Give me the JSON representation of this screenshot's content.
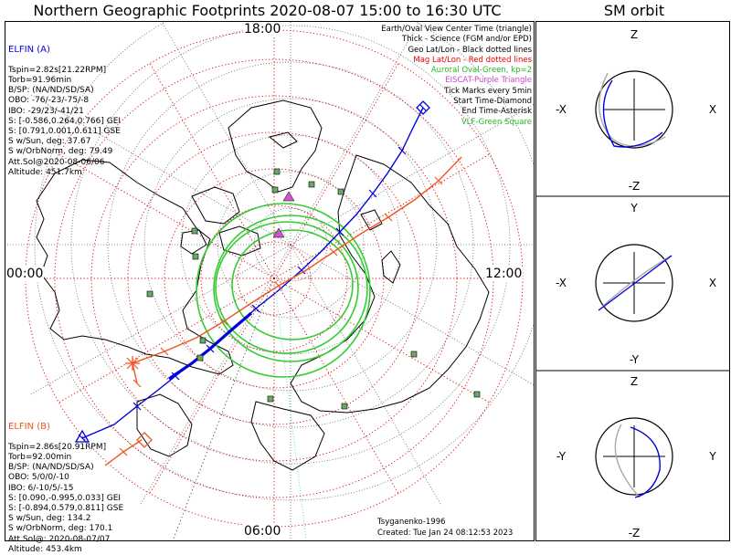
{
  "title": "Northern Geographic Footprints 2020-08-07 15:00 to 16:30 UTC",
  "sm_title": "SM orbit",
  "hour_labels": {
    "top": "18:00",
    "right": "12:00",
    "bottom": "06:00",
    "left": "00:00"
  },
  "elfin_a": {
    "name": "ELFIN (A)",
    "color": "#0000dd",
    "lines": [
      "Tspin=2.82s[21.22RPM]",
      "Torb=91.96min",
      "B/SP: (NA/ND/SD/SA)",
      "OBO: -76/-23/-75/-8",
      "IBO: -29/23/-41/21",
      "S: [-0.586,0.264,0.766] GEI",
      "S: [0.791,0.001,0.611] GSE",
      "S w/Sun, deg: 37.67",
      "S w/OrbNorm, deg: 79.49",
      "Att.Sol@2020-08-06/06",
      "Altitude: 451.7km"
    ]
  },
  "elfin_b": {
    "name": "ELFIN (B)",
    "color": "#ee5522",
    "lines": [
      "Tspin=2.86s[20.91RPM]",
      "Torb=92.00min",
      "B/SP: (NA/ND/SD/SA)",
      "OBO: 5/0/0/-10",
      "IBO: 6/-10/5/-15",
      "S: [0.090,-0.995,0.033] GEI",
      "S: [-0.894,0.579,0.811] GSE",
      "S w/Sun, deg: 134.2",
      "S w/OrbNorm, deg: 170.1",
      "Att.Sol@: 2020-08-07/07",
      "Altitude: 453.4km"
    ]
  },
  "legend": [
    {
      "text": "Earth/Oval View Center Time (triangle)",
      "color": "#000000"
    },
    {
      "text": "Thick - Science (FGM and/or EPD)",
      "color": "#000000"
    },
    {
      "text": "Geo Lat/Lon - Black dotted lines",
      "color": "#000000"
    },
    {
      "text": "Mag Lat/Lon - Red dotted lines",
      "color": "#ee0000"
    },
    {
      "text": "Auroral Oval-Green, kp=2",
      "color": "#22bb22"
    },
    {
      "text": "EISCAT-Purple Triangle",
      "color": "#cc44cc"
    },
    {
      "text": "Tick Marks every 5min",
      "color": "#000000"
    },
    {
      "text": "Start Time-Diamond",
      "color": "#000000"
    },
    {
      "text": "End Time-Asterisk",
      "color": "#000000"
    },
    {
      "text": "VLF-Green Square",
      "color": "#22bb22"
    }
  ],
  "credits": [
    "Tsyganenko-1996",
    "Created: Tue Jan 24 08:12:53 2023"
  ],
  "sm_panels": [
    {
      "top": "Z",
      "bottom": "-Z",
      "left": "-X",
      "right": "X"
    },
    {
      "top": "Y",
      "bottom": "-Y",
      "left": "-X",
      "right": "X"
    },
    {
      "top": "Z",
      "bottom": "-Z",
      "left": "-Y",
      "right": "Y"
    }
  ],
  "chart_data": {
    "type": "map",
    "projection": "north polar stereographic",
    "magnetic_local_time_labels": [
      "18:00",
      "12:00",
      "06:00",
      "00:00"
    ],
    "auroral_oval_kp": 2,
    "tick_interval_min": 5,
    "time_range": [
      "2020-08-07 15:00",
      "2020-08-07 16:30"
    ],
    "series": [
      {
        "name": "ELFIN (A)",
        "color": "#0000dd"
      },
      {
        "name": "ELFIN (B)",
        "color": "#ee5522"
      }
    ]
  }
}
